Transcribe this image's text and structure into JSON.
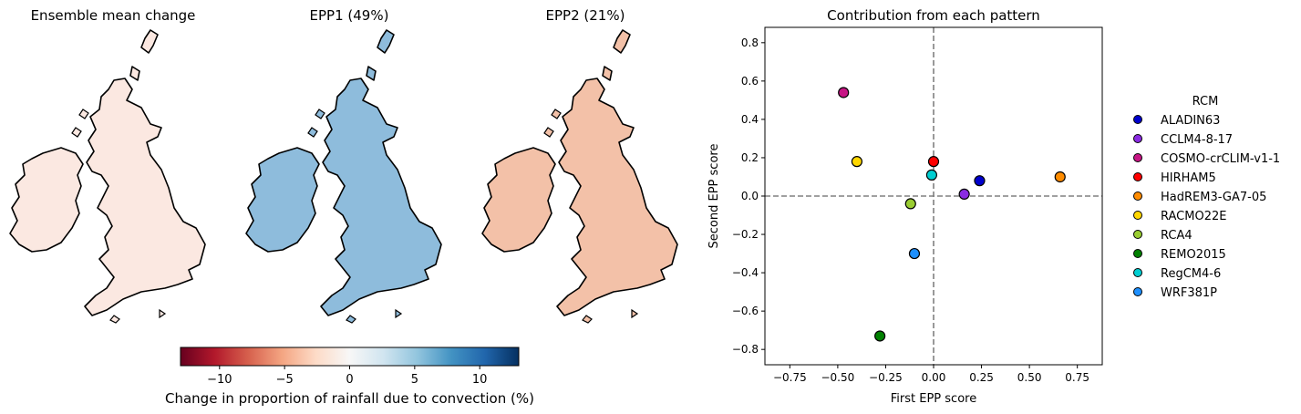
{
  "maps": [
    {
      "title": "Ensemble mean change",
      "fill": "#fbe8e1"
    },
    {
      "title": "EPP1 (49%)",
      "fill": "#8ebcdc"
    },
    {
      "title": "EPP2 (21%)",
      "fill": "#f3c1a8"
    }
  ],
  "colorbar": {
    "label": "Change in proportion of rainfall due to convection (%)",
    "range": [
      -13,
      13
    ],
    "ticks": [
      -10,
      -5,
      0,
      5,
      10
    ],
    "tick_labels": [
      "−10",
      "−5",
      "0",
      "5",
      "10"
    ],
    "colormap": "RdBu",
    "colors": [
      "#67001f",
      "#b2182b",
      "#d6604d",
      "#f4a582",
      "#fddbc7",
      "#f7f7f7",
      "#d1e5f0",
      "#92c5de",
      "#4393c3",
      "#2166ac",
      "#053061"
    ]
  },
  "chart_data": {
    "type": "scatter",
    "title": "Contribution from each pattern",
    "xlabel": "First EPP score",
    "ylabel": "Second EPP score",
    "xlim": [
      -0.88,
      0.88
    ],
    "ylim": [
      -0.88,
      0.88
    ],
    "xticks": [
      -0.75,
      -0.5,
      -0.25,
      0.0,
      0.25,
      0.5,
      0.75
    ],
    "xtick_labels": [
      "−0.75",
      "−0.50",
      "−0.25",
      "0.00",
      "0.25",
      "0.50",
      "0.75"
    ],
    "yticks": [
      -0.8,
      -0.6,
      -0.4,
      -0.2,
      0.0,
      0.2,
      0.4,
      0.6,
      0.8
    ],
    "ytick_labels": [
      "−0.8",
      "−0.6",
      "−0.4",
      "−0.2",
      "0.0",
      "0.2",
      "0.4",
      "0.6",
      "0.8"
    ],
    "reference_lines": {
      "x": 0,
      "y": 0,
      "style": "dashed",
      "color": "#808080"
    },
    "legend_title": "RCM",
    "legend_position": "outside-right",
    "series": [
      {
        "name": "ALADIN63",
        "color": "#0000cd",
        "x": 0.24,
        "y": 0.08
      },
      {
        "name": "CCLM4-8-17",
        "color": "#8a2be2",
        "x": 0.16,
        "y": 0.01
      },
      {
        "name": "COSMO-crCLIM-v1-1",
        "color": "#c71585",
        "x": -0.47,
        "y": 0.54
      },
      {
        "name": "HIRHAM5",
        "color": "#ff0000",
        "x": 0.0,
        "y": 0.18
      },
      {
        "name": "HadREM3-GA7-05",
        "color": "#ff8c00",
        "x": 0.66,
        "y": 0.1
      },
      {
        "name": "RACMO22E",
        "color": "#ffd700",
        "x": -0.4,
        "y": 0.18
      },
      {
        "name": "RCA4",
        "color": "#9acd32",
        "x": -0.12,
        "y": -0.04
      },
      {
        "name": "REMO2015",
        "color": "#008000",
        "x": -0.28,
        "y": -0.73
      },
      {
        "name": "RegCM4-6",
        "color": "#00ced1",
        "x": -0.01,
        "y": 0.11
      },
      {
        "name": "WRF381P",
        "color": "#1e90ff",
        "x": -0.1,
        "y": -0.3
      }
    ]
  }
}
